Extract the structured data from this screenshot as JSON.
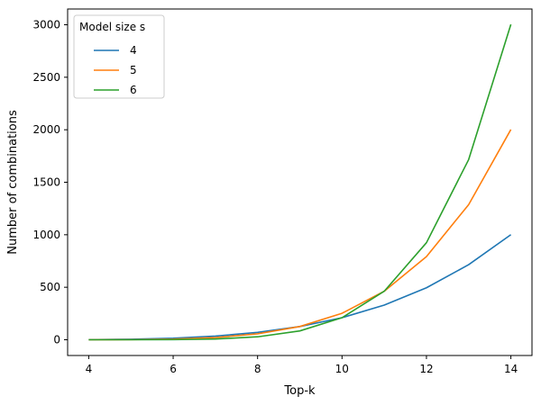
{
  "chart_data": {
    "type": "line",
    "title": "",
    "xlabel": "Top-k",
    "ylabel": "Number of combinations",
    "xlim": [
      3.5,
      14.5
    ],
    "ylim": [
      -150,
      3150
    ],
    "xticks": [
      4,
      6,
      8,
      10,
      12,
      14
    ],
    "yticks": [
      0,
      500,
      1000,
      1500,
      2000,
      2500,
      3000
    ],
    "grid": false,
    "legend": {
      "title": "Model size s",
      "placement": "top-left"
    },
    "x": [
      4,
      5,
      6,
      7,
      8,
      9,
      10,
      11,
      12,
      13,
      14
    ],
    "series": [
      {
        "name": "4",
        "color": "#1f77b4",
        "values": [
          1,
          5,
          15,
          35,
          70,
          126,
          210,
          330,
          495,
          715,
          1001
        ]
      },
      {
        "name": "5",
        "color": "#ff7f0e",
        "values": [
          0,
          1,
          6,
          21,
          56,
          126,
          252,
          462,
          792,
          1287,
          2002
        ]
      },
      {
        "name": "6",
        "color": "#2ca02c",
        "values": [
          0,
          0,
          1,
          7,
          28,
          84,
          210,
          462,
          924,
          1716,
          3003
        ]
      }
    ]
  }
}
